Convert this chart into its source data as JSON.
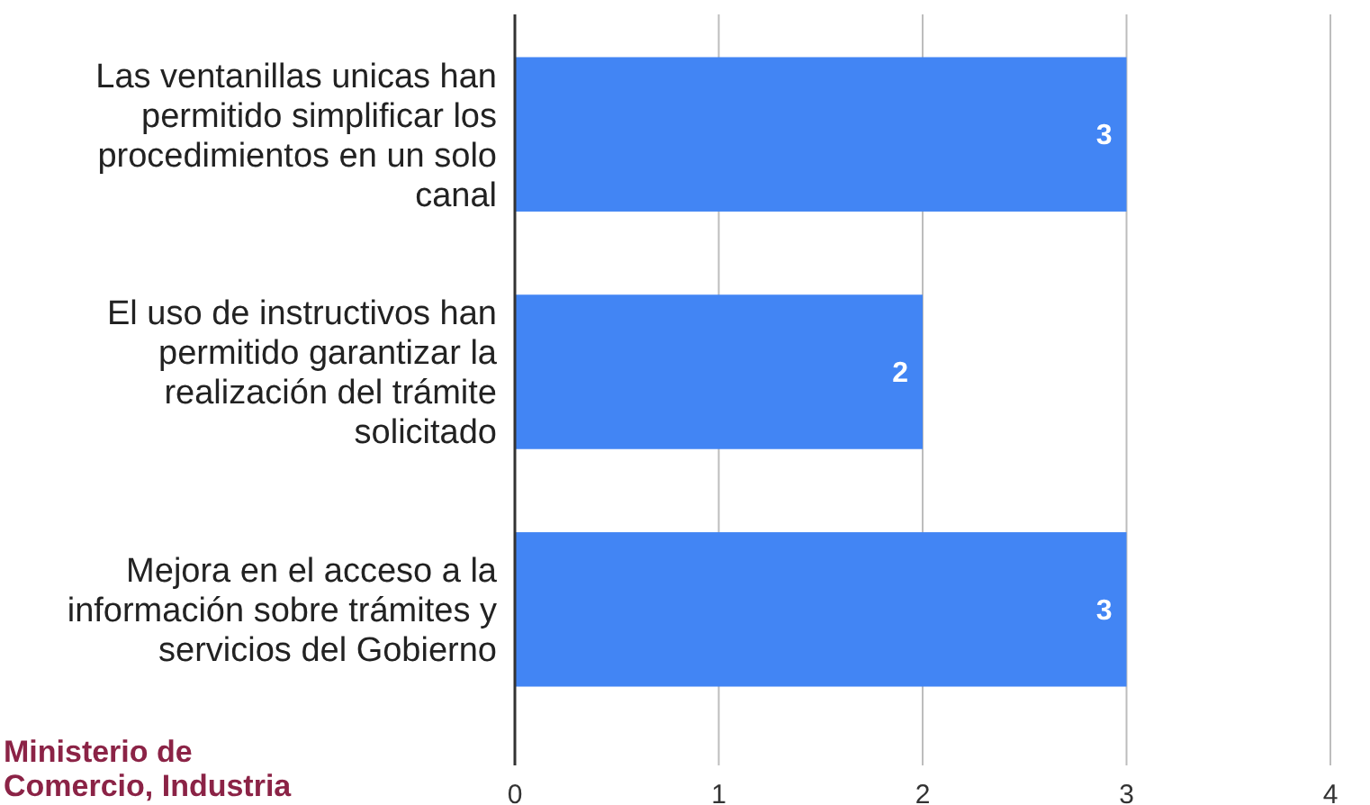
{
  "chart_data": {
    "type": "bar",
    "orientation": "horizontal",
    "categories": [
      "Las ventanillas unicas han permitido simplificar los procedimientos en un solo canal",
      "El uso de instructivos han permitido garantizar la realización del trámite solicitado",
      "Mejora en el acceso a la información sobre trámites y servicios del Gobierno"
    ],
    "values": [
      3,
      2,
      3
    ],
    "color": "#4285f4",
    "xlim": [
      0,
      4
    ],
    "xticks": [
      0,
      1,
      2,
      3,
      4
    ],
    "grid": "x",
    "data_labels": true,
    "annotations": [
      "Ministerio de Comercio, Industria"
    ]
  }
}
